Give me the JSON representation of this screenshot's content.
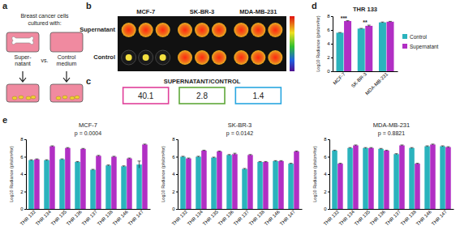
{
  "figure": {
    "a": {
      "letter": "a",
      "heading": [
        "Breast cancer cells",
        "cultured with:"
      ],
      "left": [
        "Super-",
        "natant"
      ],
      "middle": "vs.",
      "right": [
        "Control",
        "medium"
      ]
    },
    "b": {
      "letter": "b",
      "rows": [
        "Supernatant",
        "Control"
      ],
      "columns": [
        "MCF-7",
        "SK-BR-3",
        "MDA-MB-231"
      ]
    },
    "c": {
      "letter": "c",
      "title": "SUPERNATANT/CONTROL",
      "ratios": [
        40.1,
        2.8,
        1.4
      ],
      "colors": [
        "#e0409a",
        "#5fa83a",
        "#2aa7e0"
      ]
    },
    "d": {
      "letter": "d"
    },
    "e": {
      "letter": "e"
    }
  },
  "chart_data": [
    {
      "type": "bar",
      "title": "THR 133",
      "categories": [
        "MCF-7",
        "SK-BR-3",
        "MDA-MB-231"
      ],
      "y_label": "Log10 Radiance (p/s/cm²/sr)",
      "ylim": [
        0,
        8
      ],
      "yticks": [
        0,
        2,
        4,
        6,
        8
      ],
      "legend": "right",
      "series": [
        {
          "name": "Control",
          "color": "#2bb3bd",
          "values": [
            5.6,
            6.2,
            7.1
          ],
          "errors": [
            0.03,
            0.03,
            0.05
          ]
        },
        {
          "name": "Supernatant",
          "color": "#b12fc4",
          "values": [
            7.3,
            6.6,
            7.2
          ],
          "errors": [
            0.05,
            0.1,
            0.05
          ]
        }
      ],
      "significance": [
        "***",
        "**",
        null
      ]
    },
    {
      "type": "bar",
      "title": "MCF-7",
      "subtitle": "p = 0.0004",
      "categories": [
        "THR 132",
        "THR 134",
        "THR 135",
        "THR 136",
        "THR 137",
        "THR 138",
        "THR 146",
        "THR 147"
      ],
      "y_label": "Log10 Radiance (p/s/cm²/sr)",
      "ylim": [
        0,
        8
      ],
      "yticks": [
        0,
        2,
        4,
        6,
        8
      ],
      "series": [
        {
          "color": "#2bb3bd",
          "values": [
            5.6,
            5.6,
            5.7,
            5.4,
            4.5,
            5.0,
            4.9,
            5.1
          ],
          "errors": [
            0.05,
            0.05,
            0.05,
            0.05,
            0.05,
            0.05,
            0.05,
            0.4
          ]
        },
        {
          "color": "#b12fc4",
          "values": [
            5.7,
            7.2,
            7.0,
            6.9,
            6.1,
            6.0,
            5.8,
            7.4
          ],
          "errors": [
            0.05,
            0.05,
            0.05,
            0.05,
            0.05,
            0.05,
            0.05,
            0.05
          ]
        }
      ]
    },
    {
      "type": "bar",
      "title": "SK-BR-3",
      "subtitle": "p = 0.0142",
      "categories": [
        "THR 132",
        "THR 134",
        "THR 135",
        "THR 136",
        "THR 137",
        "THR 138",
        "THR 146",
        "THR 147"
      ],
      "y_label": "Log10 Radiance (p/s/cm²/sr)",
      "ylim": [
        0,
        8
      ],
      "yticks": [
        0,
        2,
        4,
        6,
        8
      ],
      "series": [
        {
          "color": "#2bb3bd",
          "values": [
            6.0,
            6.0,
            5.9,
            6.2,
            4.6,
            5.4,
            5.5,
            5.2
          ],
          "errors": [
            0.05,
            0.05,
            0.05,
            0.05,
            0.05,
            0.05,
            0.05,
            0.05
          ]
        },
        {
          "color": "#b12fc4",
          "values": [
            5.8,
            6.7,
            6.6,
            6.3,
            6.2,
            5.4,
            5.5,
            6.6
          ],
          "errors": [
            0.05,
            0.05,
            0.05,
            0.1,
            0.05,
            0.05,
            0.05,
            0.05
          ]
        }
      ]
    },
    {
      "type": "bar",
      "title": "MDA-MB-231",
      "subtitle": "p = 0.8821",
      "categories": [
        "THR 132",
        "THR 134",
        "THR 135",
        "THR 136",
        "THR 137",
        "THR 138",
        "THR 146",
        "THR 147"
      ],
      "y_label": "Log10 Radiance (p/s/cm²/sr)",
      "ylim": [
        0,
        8
      ],
      "yticks": [
        0,
        2,
        4,
        6,
        8
      ],
      "series": [
        {
          "color": "#2bb3bd",
          "values": [
            6.7,
            7.0,
            7.0,
            6.9,
            6.3,
            7.0,
            7.2,
            7.2
          ],
          "errors": [
            0.05,
            0.05,
            0.05,
            0.05,
            0.05,
            0.05,
            0.05,
            0.05
          ]
        },
        {
          "color": "#b12fc4",
          "values": [
            5.2,
            7.3,
            7.0,
            6.7,
            7.3,
            5.2,
            7.4,
            7.1
          ],
          "errors": [
            0.05,
            0.05,
            0.05,
            0.05,
            0.05,
            0.05,
            0.05,
            0.05
          ]
        }
      ]
    }
  ]
}
